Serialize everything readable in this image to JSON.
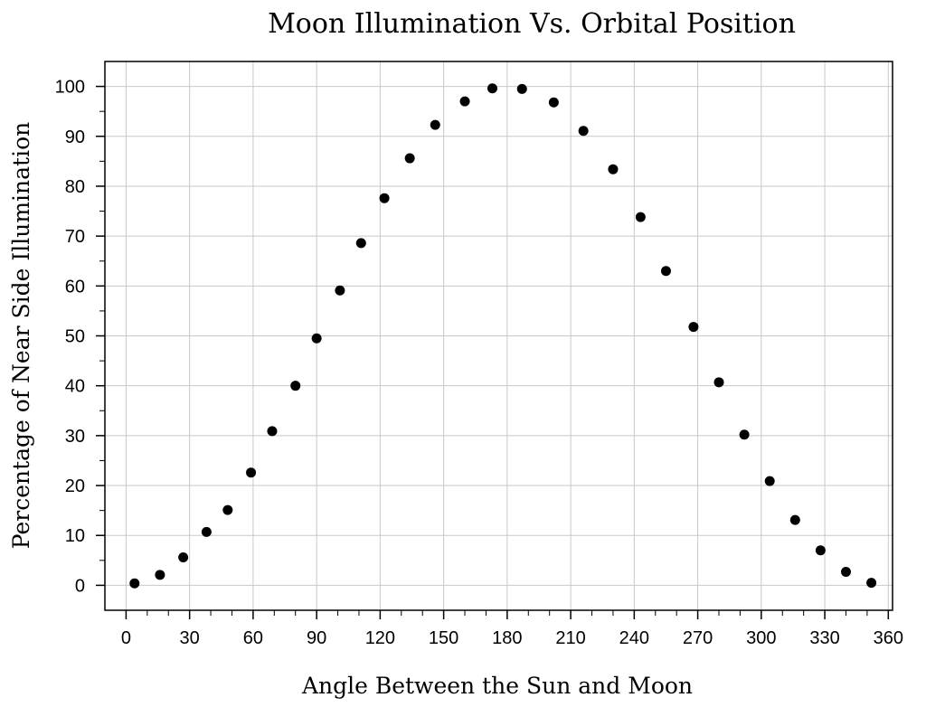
{
  "chart_data": {
    "type": "scatter",
    "title": "Moon Illumination Vs. Orbital Position",
    "xlabel": "Angle Between the Sun and Moon",
    "ylabel": "Percentage of Near Side Illumination",
    "xlim": [
      -10,
      362
    ],
    "ylim": [
      -5,
      105
    ],
    "xticks": [
      0,
      30,
      60,
      90,
      120,
      150,
      180,
      210,
      240,
      270,
      300,
      330,
      360
    ],
    "yticks": [
      0,
      10,
      20,
      30,
      40,
      50,
      60,
      70,
      80,
      90,
      100
    ],
    "xminor_step": 10,
    "yminor_step": 5,
    "grid": true,
    "legend": "none",
    "marker_color": "#000000",
    "grid_color": "#c8c8c8",
    "series": [
      {
        "points": [
          [
            4,
            0.4
          ],
          [
            16,
            2.1
          ],
          [
            27,
            5.6
          ],
          [
            38,
            10.7
          ],
          [
            48,
            15.1
          ],
          [
            59,
            22.6
          ],
          [
            69,
            30.9
          ],
          [
            80,
            40.0
          ],
          [
            90,
            49.5
          ],
          [
            101,
            59.1
          ],
          [
            111,
            68.6
          ],
          [
            122,
            77.6
          ],
          [
            134,
            85.6
          ],
          [
            146,
            92.3
          ],
          [
            160,
            97.0
          ],
          [
            173,
            99.6
          ],
          [
            187,
            99.5
          ],
          [
            202,
            96.8
          ],
          [
            216,
            91.1
          ],
          [
            230,
            83.4
          ],
          [
            243,
            73.8
          ],
          [
            255,
            63.0
          ],
          [
            268,
            51.8
          ],
          [
            280,
            40.7
          ],
          [
            292,
            30.2
          ],
          [
            304,
            20.9
          ],
          [
            316,
            13.1
          ],
          [
            328,
            7.0
          ],
          [
            340,
            2.7
          ],
          [
            352,
            0.5
          ]
        ]
      }
    ]
  }
}
